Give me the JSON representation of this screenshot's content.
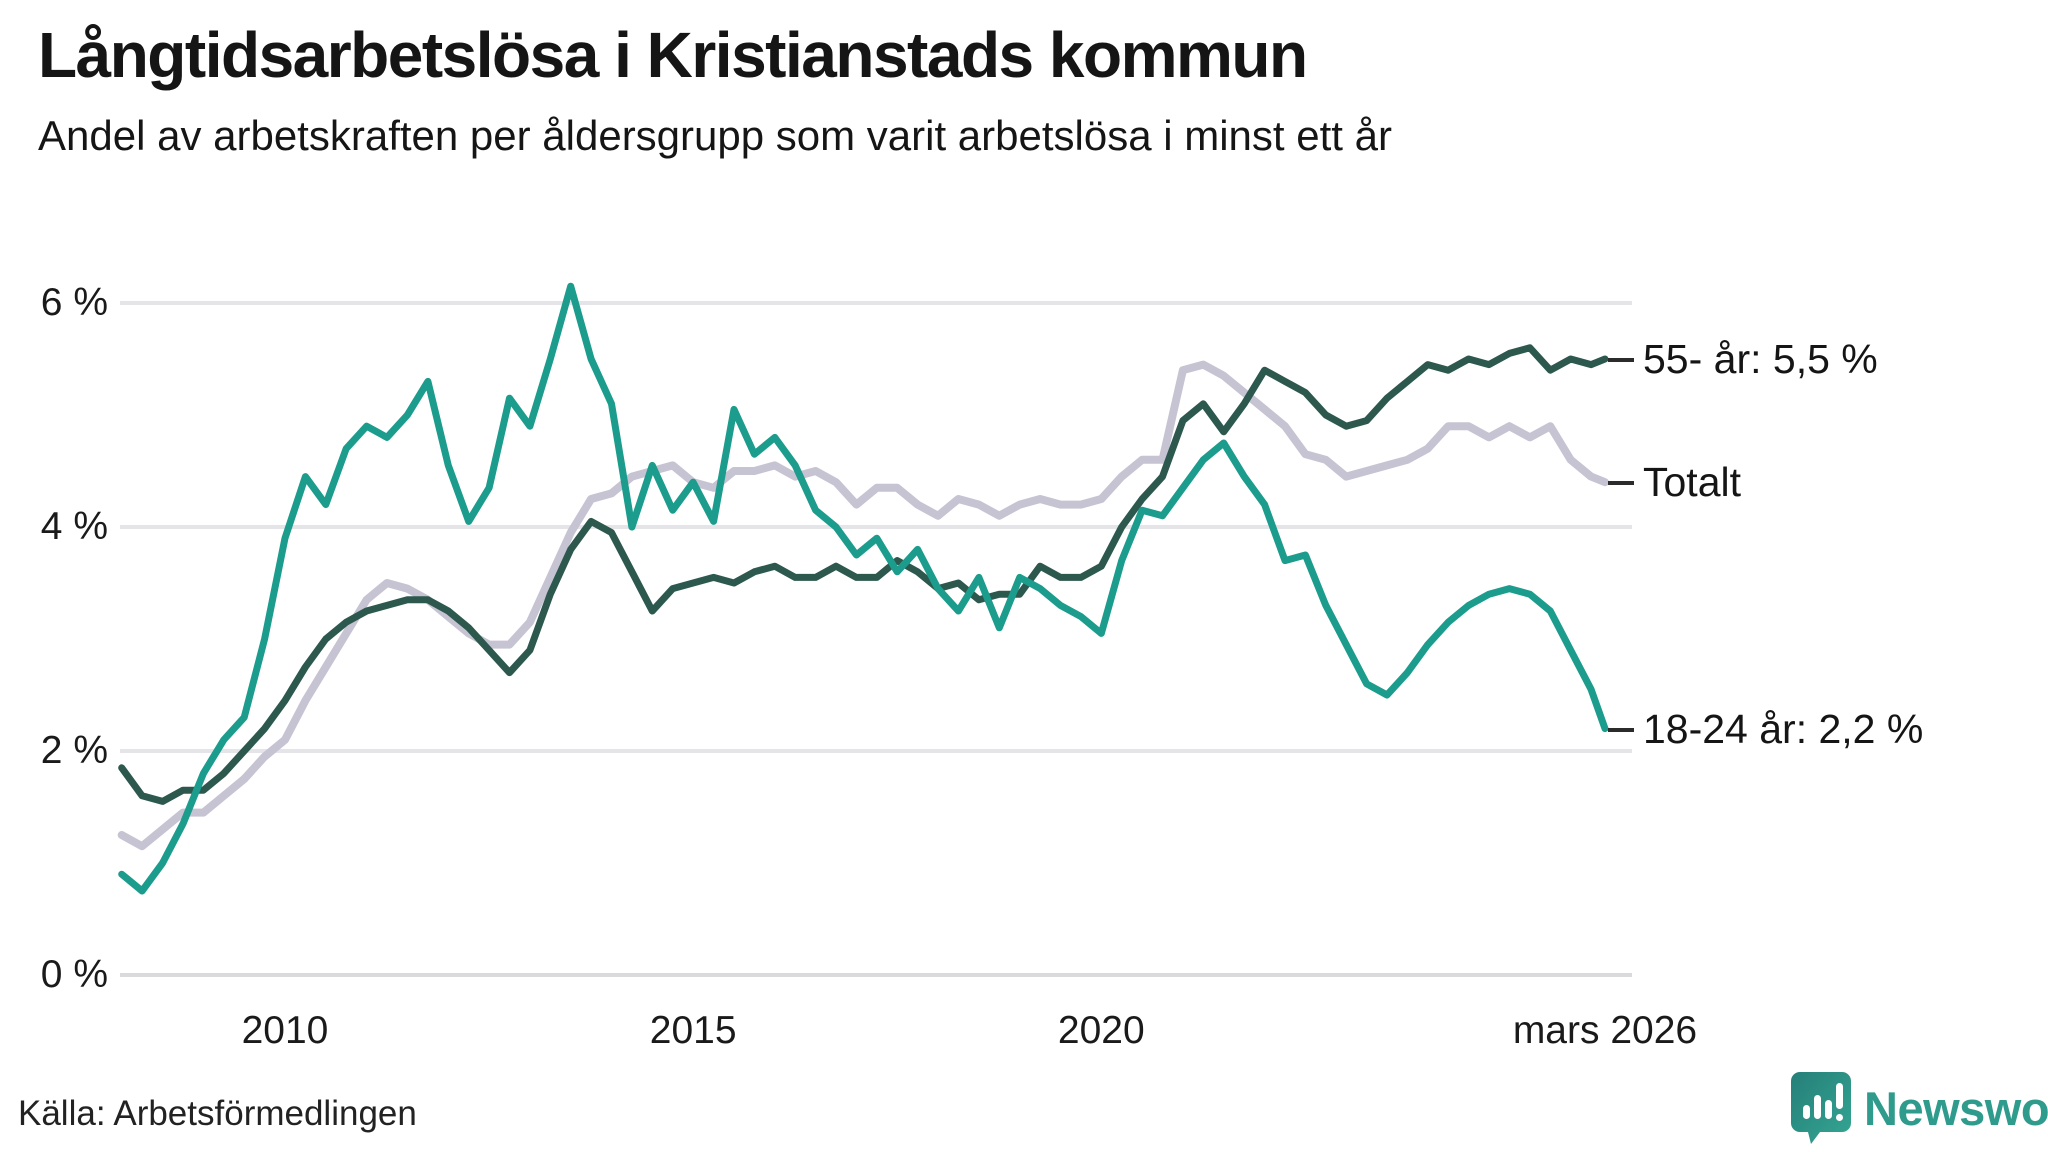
{
  "title": "Långtidsarbetslösa i Kristianstads kommun",
  "subtitle": "Andel av arbetskraften per åldersgrupp som varit arbetslösa i minst ett år",
  "source": "Källa: Arbetsförmedlingen",
  "brand": {
    "name": "Newsworthy",
    "color": "#2f9b8c"
  },
  "colors": {
    "background": "#ffffff",
    "grid": "#e5e4e8",
    "zero_line": "#dad9de",
    "text": "#151515",
    "tick_dash": "#2b2b2b"
  },
  "chart_data": {
    "type": "line",
    "title": "Långtidsarbetslösa i Kristianstads kommun",
    "subtitle": "Andel av arbetskraften per åldersgrupp som varit arbetslösa i minst ett år",
    "unit": "%",
    "grid": true,
    "legend_position": "right-end-labels",
    "ylim": [
      0,
      6.5
    ],
    "xlim": [
      2007.9,
      2026.4
    ],
    "y_ticks": [
      {
        "value": 6,
        "label": "6 %"
      },
      {
        "value": 4,
        "label": "4 %"
      },
      {
        "value": 2,
        "label": "2 %"
      },
      {
        "value": 0,
        "label": "0 %"
      }
    ],
    "x_ticks": [
      {
        "year": 2010,
        "label": "2010"
      },
      {
        "year": 2015,
        "label": "2015"
      },
      {
        "year": 2020,
        "label": "2020"
      },
      {
        "year": 2026.17,
        "label": "mars 2026"
      }
    ],
    "x": [
      2008,
      2008.25,
      2008.5,
      2008.75,
      2009,
      2009.25,
      2009.5,
      2009.75,
      2010,
      2010.25,
      2010.5,
      2010.75,
      2011,
      2011.25,
      2011.5,
      2011.75,
      2012,
      2012.25,
      2012.5,
      2012.75,
      2013,
      2013.25,
      2013.5,
      2013.75,
      2014,
      2014.25,
      2014.5,
      2014.75,
      2015,
      2015.25,
      2015.5,
      2015.75,
      2016,
      2016.25,
      2016.5,
      2016.75,
      2017,
      2017.25,
      2017.5,
      2017.75,
      2018,
      2018.25,
      2018.5,
      2018.75,
      2019,
      2019.25,
      2019.5,
      2019.75,
      2020,
      2020.25,
      2020.5,
      2020.75,
      2021,
      2021.25,
      2021.5,
      2021.75,
      2022,
      2022.25,
      2022.5,
      2022.75,
      2023,
      2023.25,
      2023.5,
      2023.75,
      2024,
      2024.25,
      2024.5,
      2024.75,
      2025,
      2025.25,
      2025.5,
      2025.75,
      2026,
      2026.17
    ],
    "series": [
      {
        "name": "Totalt",
        "end_label": "Totalt",
        "color": "#c6c3d2",
        "stroke_width": 8,
        "values": [
          1.25,
          1.15,
          1.3,
          1.45,
          1.45,
          1.6,
          1.75,
          1.95,
          2.1,
          2.45,
          2.75,
          3.05,
          3.35,
          3.5,
          3.45,
          3.35,
          3.2,
          3.05,
          2.95,
          2.95,
          3.15,
          3.55,
          3.95,
          4.25,
          4.3,
          4.45,
          4.5,
          4.55,
          4.4,
          4.35,
          4.5,
          4.5,
          4.55,
          4.45,
          4.5,
          4.4,
          4.2,
          4.35,
          4.35,
          4.2,
          4.1,
          4.25,
          4.2,
          4.1,
          4.2,
          4.25,
          4.2,
          4.2,
          4.25,
          4.45,
          4.6,
          4.6,
          5.4,
          5.45,
          5.35,
          5.2,
          5.05,
          4.9,
          4.65,
          4.6,
          4.45,
          4.5,
          4.55,
          4.6,
          4.7,
          4.9,
          4.9,
          4.8,
          4.9,
          4.8,
          4.9,
          4.6,
          4.45,
          4.4
        ]
      },
      {
        "name": "55- år",
        "end_label": "55- år: 5,5 %",
        "color": "#2c584d",
        "stroke_width": 7,
        "values": [
          1.85,
          1.6,
          1.55,
          1.65,
          1.65,
          1.8,
          2.0,
          2.2,
          2.45,
          2.75,
          3.0,
          3.15,
          3.25,
          3.3,
          3.35,
          3.35,
          3.25,
          3.1,
          2.9,
          2.7,
          2.9,
          3.4,
          3.8,
          4.05,
          3.95,
          3.6,
          3.25,
          3.45,
          3.5,
          3.55,
          3.5,
          3.6,
          3.65,
          3.55,
          3.55,
          3.65,
          3.55,
          3.55,
          3.7,
          3.6,
          3.45,
          3.5,
          3.35,
          3.4,
          3.4,
          3.65,
          3.55,
          3.55,
          3.65,
          4.0,
          4.25,
          4.45,
          4.95,
          5.1,
          4.85,
          5.1,
          5.4,
          5.3,
          5.2,
          5.0,
          4.9,
          4.95,
          5.15,
          5.3,
          5.45,
          5.4,
          5.5,
          5.45,
          5.55,
          5.6,
          5.4,
          5.5,
          5.45,
          5.5
        ]
      },
      {
        "name": "18-24 år",
        "end_label": "18-24 år: 2,2 %",
        "color": "#1b9c8c",
        "stroke_width": 7,
        "values": [
          0.9,
          0.75,
          1.0,
          1.35,
          1.8,
          2.1,
          2.3,
          3.0,
          3.9,
          4.45,
          4.2,
          4.7,
          4.9,
          4.8,
          5.0,
          5.3,
          4.55,
          4.05,
          4.35,
          5.15,
          4.9,
          5.5,
          6.15,
          5.5,
          5.1,
          4.0,
          4.55,
          4.15,
          4.4,
          4.05,
          5.05,
          4.65,
          4.8,
          4.55,
          4.15,
          4.0,
          3.75,
          3.9,
          3.6,
          3.8,
          3.45,
          3.25,
          3.55,
          3.1,
          3.55,
          3.45,
          3.3,
          3.2,
          3.05,
          3.7,
          4.15,
          4.1,
          4.35,
          4.6,
          4.75,
          4.45,
          4.2,
          3.7,
          3.75,
          3.3,
          2.95,
          2.6,
          2.5,
          2.7,
          2.95,
          3.15,
          3.3,
          3.4,
          3.45,
          3.4,
          3.25,
          2.9,
          2.55,
          2.2
        ]
      }
    ]
  }
}
